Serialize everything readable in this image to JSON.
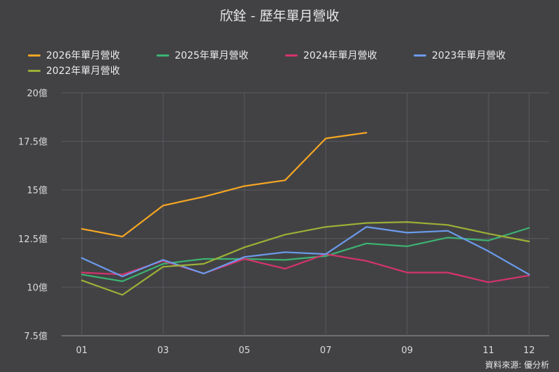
{
  "chart_data": {
    "type": "line",
    "title": "欣銓 - 歷年單月營收",
    "xlabel": "",
    "ylabel": "",
    "ylim": [
      7.5,
      20
    ],
    "y_ticks": [
      {
        "value": 7.5,
        "label": "7.5億"
      },
      {
        "value": 10,
        "label": "10億"
      },
      {
        "value": 12.5,
        "label": "12.5億"
      },
      {
        "value": 15,
        "label": "15億"
      },
      {
        "value": 17.5,
        "label": "17.5億"
      },
      {
        "value": 20,
        "label": "20億"
      }
    ],
    "x": [
      1,
      2,
      3,
      4,
      5,
      6,
      7,
      8,
      9,
      10,
      11,
      12
    ],
    "x_ticks": [
      {
        "value": 1,
        "label": "01"
      },
      {
        "value": 3,
        "label": "03"
      },
      {
        "value": 5,
        "label": "05"
      },
      {
        "value": 7,
        "label": "07"
      },
      {
        "value": 9,
        "label": "09"
      },
      {
        "value": 11,
        "label": "11"
      },
      {
        "value": 12,
        "label": "12"
      }
    ],
    "grid": true,
    "legend_position": "top-left",
    "series": [
      {
        "name": "2026年單月營收",
        "color": "#f5a623",
        "values": [
          13.0,
          12.6,
          14.2,
          14.65,
          15.2,
          15.5,
          17.65,
          17.95,
          null,
          null,
          null,
          null
        ]
      },
      {
        "name": "2025年單月營收",
        "color": "#3cb371",
        "values": [
          10.65,
          10.3,
          11.2,
          11.45,
          11.45,
          11.4,
          11.6,
          12.25,
          12.1,
          12.55,
          12.4,
          13.05
        ]
      },
      {
        "name": "2024年單月營收",
        "color": "#d6336c",
        "values": [
          10.75,
          10.65,
          11.35,
          10.7,
          11.45,
          10.95,
          11.7,
          11.35,
          10.75,
          10.75,
          10.25,
          10.6
        ]
      },
      {
        "name": "2023年單月營收",
        "color": "#6b9bec",
        "values": [
          11.5,
          10.55,
          11.4,
          10.7,
          11.55,
          11.8,
          11.7,
          13.1,
          12.8,
          12.9,
          11.85,
          10.65
        ]
      },
      {
        "name": "2022年單月營收",
        "color": "#9cb036",
        "values": [
          10.35,
          9.6,
          11.05,
          11.2,
          12.05,
          12.7,
          13.1,
          13.3,
          13.35,
          13.2,
          12.75,
          12.35
        ]
      }
    ]
  },
  "source_note": "資料來源: 優分析"
}
